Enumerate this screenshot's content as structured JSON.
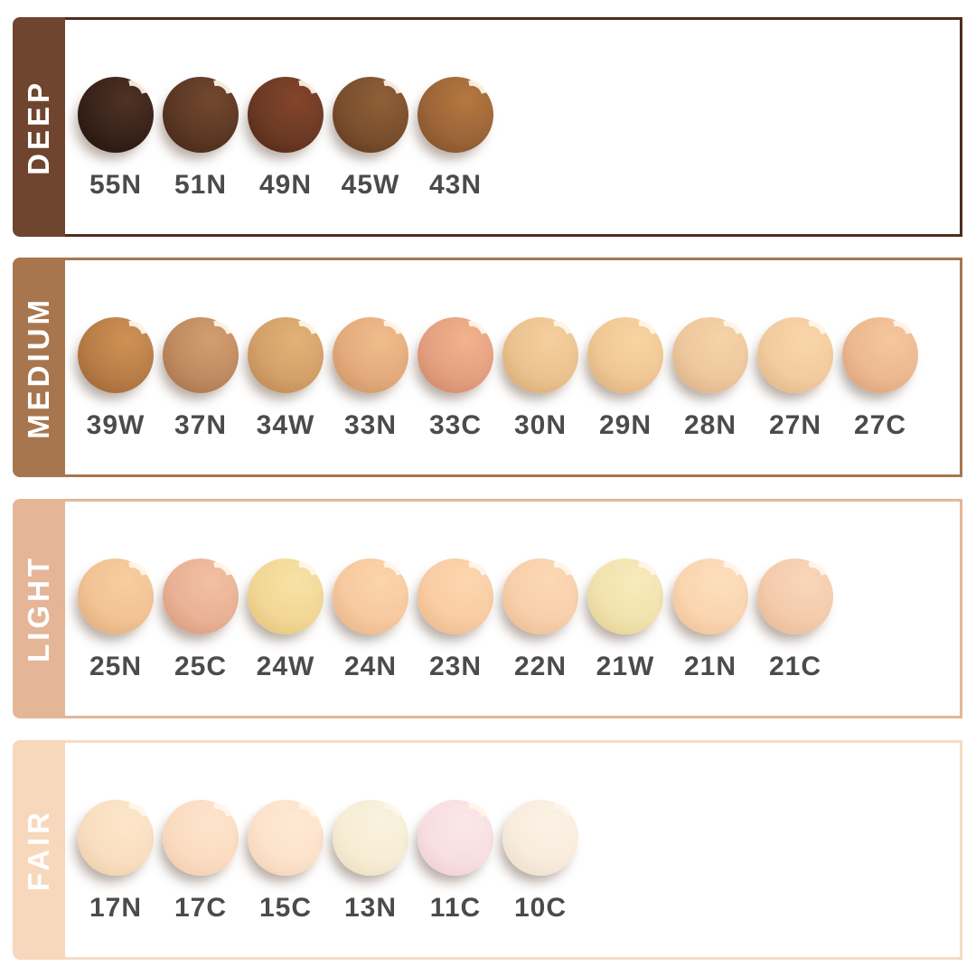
{
  "page": {
    "background": "#ffffff",
    "label_text_color": "#4b4b4b"
  },
  "rows": [
    {
      "id": "deep",
      "label": "DEEP",
      "sidebar_color": "#6f452f",
      "border_color": "#4e2d1d",
      "swatches": [
        {
          "code": "55N",
          "light": "#4f3322",
          "base": "#37221a",
          "dark": "#1f100a"
        },
        {
          "code": "51N",
          "light": "#74482e",
          "base": "#5b3825",
          "dark": "#3f2315"
        },
        {
          "code": "49N",
          "light": "#84452a",
          "base": "#6b3a25",
          "dark": "#4c2413"
        },
        {
          "code": "45W",
          "light": "#8f6038",
          "base": "#7a4f2e",
          "dark": "#5a3519"
        },
        {
          "code": "43N",
          "light": "#b5793f",
          "base": "#9c6539",
          "dark": "#7a4b26"
        }
      ]
    },
    {
      "id": "medium",
      "label": "MEDIUM",
      "sidebar_color": "#a8764e",
      "border_color": "#a8764e",
      "swatches": [
        {
          "code": "39W",
          "light": "#cf9254",
          "base": "#b87c48",
          "dark": "#96602f"
        },
        {
          "code": "37N",
          "light": "#d29f71",
          "base": "#c08a60",
          "dark": "#a06c44"
        },
        {
          "code": "34W",
          "light": "#e2b276",
          "base": "#d3a06a",
          "dark": "#b5824a"
        },
        {
          "code": "33N",
          "light": "#f0bd8b",
          "base": "#e3ab7c",
          "dark": "#c68f5e"
        },
        {
          "code": "33C",
          "light": "#f2b38d",
          "base": "#e3a080",
          "dark": "#c98062"
        },
        {
          "code": "30N",
          "light": "#f5cf9d",
          "base": "#ebc28f",
          "dark": "#d0a269"
        },
        {
          "code": "29N",
          "light": "#f8d4a0",
          "base": "#efc795",
          "dark": "#d5a871"
        },
        {
          "code": "28N",
          "light": "#f6d3a8",
          "base": "#eec79e",
          "dark": "#d4a97e"
        },
        {
          "code": "27N",
          "light": "#f9d6a9",
          "base": "#f2cb9e",
          "dark": "#dab080"
        },
        {
          "code": "27C",
          "light": "#f5c79d",
          "base": "#ecb890",
          "dark": "#d49a72"
        }
      ]
    },
    {
      "id": "light",
      "label": "LIGHT",
      "sidebar_color": "#e4b697",
      "border_color": "#e4b697",
      "swatches": [
        {
          "code": "25N",
          "light": "#f8ce9f",
          "base": "#f1c294",
          "dark": "#dba673"
        },
        {
          "code": "25C",
          "light": "#f2c0a4",
          "base": "#e9b195",
          "dark": "#d29378"
        },
        {
          "code": "24W",
          "light": "#f8e2a6",
          "base": "#f2d795",
          "dark": "#ddbd72"
        },
        {
          "code": "24N",
          "light": "#fcd5ab",
          "base": "#f7c99f",
          "dark": "#e3ad7f"
        },
        {
          "code": "23N",
          "light": "#fdd6af",
          "base": "#f9cca4",
          "dark": "#e6b083"
        },
        {
          "code": "22N",
          "light": "#fcd8b4",
          "base": "#f8cfab",
          "dark": "#e5b68b"
        },
        {
          "code": "21W",
          "light": "#f7eabc",
          "base": "#f2e2ae",
          "dark": "#ddca8b"
        },
        {
          "code": "21N",
          "light": "#fddfbd",
          "base": "#fad5b0",
          "dark": "#e8bb90"
        },
        {
          "code": "21C",
          "light": "#f9d6ba",
          "base": "#f4cbac",
          "dark": "#e1b292"
        }
      ]
    },
    {
      "id": "fair",
      "label": "FAIR",
      "sidebar_color": "#f8d8bd",
      "border_color": "#f6dcc2",
      "swatches": [
        {
          "code": "17N",
          "light": "#fce6ca",
          "base": "#f9dec0",
          "dark": "#e9c9a2"
        },
        {
          "code": "17C",
          "light": "#fde4cc",
          "base": "#fbdcc2",
          "dark": "#eec6a6"
        },
        {
          "code": "15C",
          "light": "#fee9d4",
          "base": "#fce2cb",
          "dark": "#eeccb0"
        },
        {
          "code": "13N",
          "light": "#f9f2dd",
          "base": "#f6edd5",
          "dark": "#e5d9b8"
        },
        {
          "code": "11C",
          "light": "#fbe7e8",
          "base": "#f8dfe1",
          "dark": "#e9c8cc"
        },
        {
          "code": "10C",
          "light": "#fbf2e5",
          "base": "#f8ecdd",
          "dark": "#e9d7c3"
        }
      ]
    }
  ]
}
